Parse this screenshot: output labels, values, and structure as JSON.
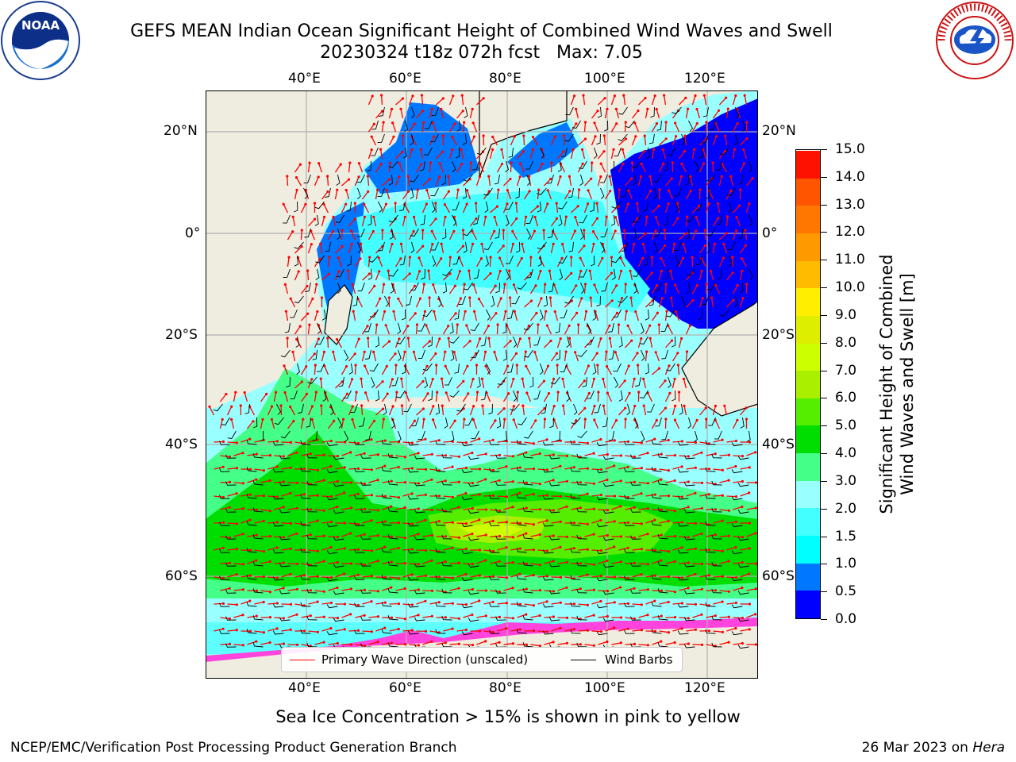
{
  "title": {
    "line1": "GEFS MEAN Indian Ocean Significant Height of Combined Wind Waves and Swell",
    "line2": "20230324 t18z 072h fcst   Max: 7.05"
  },
  "logos": {
    "left": "noaa-logo",
    "right": "nws-logo"
  },
  "map": {
    "lon_ticks_top": [
      "40°E",
      "60°E",
      "80°E",
      "100°E",
      "120°E"
    ],
    "lon_ticks_bottom": [
      "40°E",
      "60°E",
      "80°E",
      "100°E",
      "120°E"
    ],
    "lat_ticks_left": [
      "20°N",
      "0°",
      "20°S",
      "40°S",
      "60°S"
    ],
    "lat_ticks_right": [
      "20°N",
      "0°",
      "20°S",
      "40°S",
      "60°S"
    ],
    "land_color": "#efeddf",
    "grid_color": "#b0b0b0",
    "wave_arrow_color": "#ff0000",
    "wind_barb_color": "#000000"
  },
  "legend": {
    "wave_label": "Primary Wave Direction (unscaled)",
    "wind_label": "Wind Barbs"
  },
  "colorbar": {
    "title_line1": "Significant Height of Combined",
    "title_line2": "Wind Waves and Swell [m]",
    "labels": [
      "0.0",
      "0.5",
      "1.0",
      "1.5",
      "2.0",
      "3.0",
      "4.0",
      "5.0",
      "6.0",
      "7.0",
      "8.0",
      "9.0",
      "10.0",
      "11.0",
      "12.0",
      "13.0",
      "14.0",
      "15.0"
    ],
    "colors": [
      "#0000ff",
      "#0077ff",
      "#00ffff",
      "#44ffff",
      "#99ffff",
      "#44ff88",
      "#00dd00",
      "#55ee00",
      "#aaee00",
      "#ccff00",
      "#ddee00",
      "#ffee00",
      "#ffbb00",
      "#ff9900",
      "#ff7700",
      "#ff5500",
      "#ff1100"
    ]
  },
  "sea_ice_note": "Sea Ice Concentration > 15% is shown in pink to yellow",
  "footer": {
    "left": "NCEP/EMC/Verification Post Processing Product Generation Branch",
    "right_prefix": "26 Mar 2023 on",
    "right_host": "Hera"
  }
}
